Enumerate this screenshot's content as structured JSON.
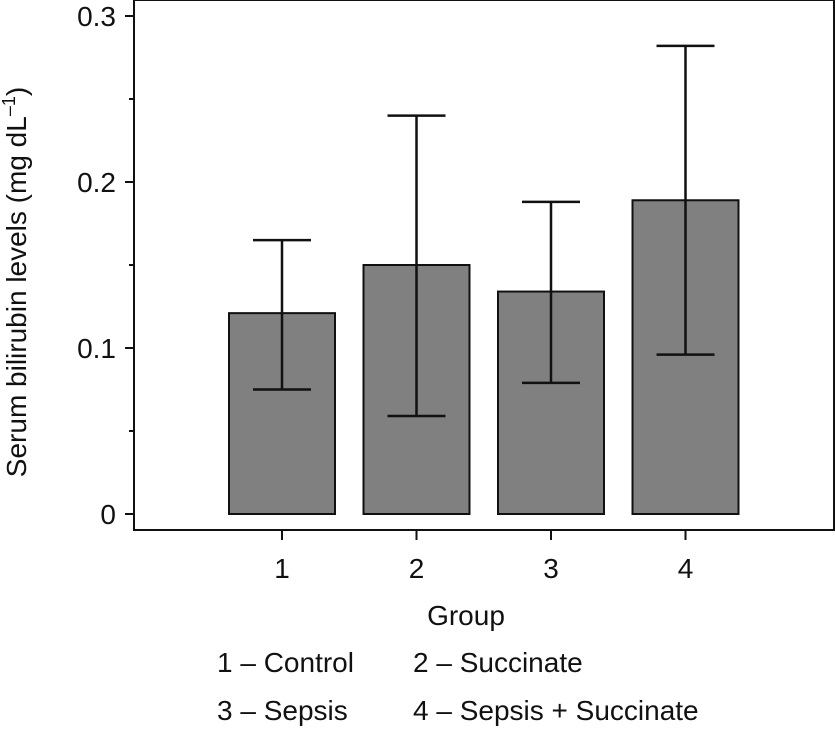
{
  "chart_data": {
    "type": "bar",
    "categories": [
      "1",
      "2",
      "3",
      "4"
    ],
    "values": [
      0.121,
      0.15,
      0.134,
      0.189
    ],
    "error_low": [
      0.075,
      0.059,
      0.079,
      0.096
    ],
    "error_high": [
      0.165,
      0.24,
      0.188,
      0.282
    ],
    "xlabel": "Group",
    "ylabel_main": "Serum bilirubin levels (mg dL",
    "ylabel_sup": "–1",
    "ylabel_close": ")",
    "ylim": [
      0,
      0.3
    ],
    "y_major_ticks": [
      0,
      0.1,
      0.2,
      0.3
    ],
    "y_tick_labels": [
      "0",
      "0.1",
      "0.2",
      "0.3"
    ],
    "y_minor_ticks": [
      0.05,
      0.15,
      0.25
    ],
    "grid": false,
    "bar_color": "#808080",
    "error_bar_color": "#111111"
  },
  "legend": [
    "1 – Control",
    "2 – Succinate",
    "3 – Sepsis",
    "4 – Sepsis + Succinate"
  ]
}
